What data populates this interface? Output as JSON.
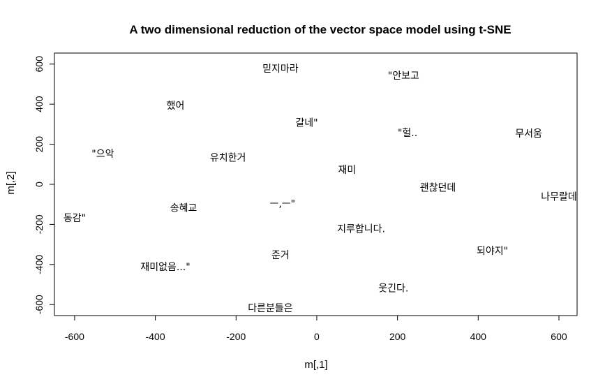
{
  "chart_data": {
    "type": "scatter",
    "title": "A two dimensional reduction of the vector space model using t-SNE",
    "xlabel": "m[,1]",
    "ylabel": "m[,2]",
    "xlim": [
      -650,
      645
    ],
    "ylim": [
      -655,
      655
    ],
    "xticks": [
      -600,
      -400,
      -200,
      0,
      200,
      400,
      600
    ],
    "yticks": [
      -600,
      -400,
      -200,
      0,
      200,
      400,
      600
    ],
    "grid": false,
    "points": [
      {
        "label": "믿지마라",
        "x": -90,
        "y": 575
      },
      {
        "label": "\"안보고",
        "x": 215,
        "y": 540
      },
      {
        "label": "했어",
        "x": -350,
        "y": 390
      },
      {
        "label": "갈네\"",
        "x": -25,
        "y": 305
      },
      {
        "label": "\"헐..",
        "x": 225,
        "y": 255
      },
      {
        "label": "무서움",
        "x": 525,
        "y": 250
      },
      {
        "label": "\"으악",
        "x": -530,
        "y": 150
      },
      {
        "label": "유치한거",
        "x": -220,
        "y": 130
      },
      {
        "label": "재미",
        "x": 75,
        "y": 70
      },
      {
        "label": "괜찮던데",
        "x": 300,
        "y": -20
      },
      {
        "label": "나무랄데",
        "x": 600,
        "y": -65
      },
      {
        "label": "ㅡ,ㅡ\"",
        "x": -85,
        "y": -100
      },
      {
        "label": "송혜교",
        "x": -330,
        "y": -120
      },
      {
        "label": "동감\"",
        "x": -600,
        "y": -170
      },
      {
        "label": "지루합니다.",
        "x": 110,
        "y": -225
      },
      {
        "label": "되야지\"",
        "x": 435,
        "y": -335
      },
      {
        "label": "준거",
        "x": -90,
        "y": -355
      },
      {
        "label": "재미없음...\"",
        "x": -375,
        "y": -415
      },
      {
        "label": "웃긴다.",
        "x": 190,
        "y": -520
      },
      {
        "label": "다른분들은",
        "x": -115,
        "y": -620
      }
    ]
  }
}
